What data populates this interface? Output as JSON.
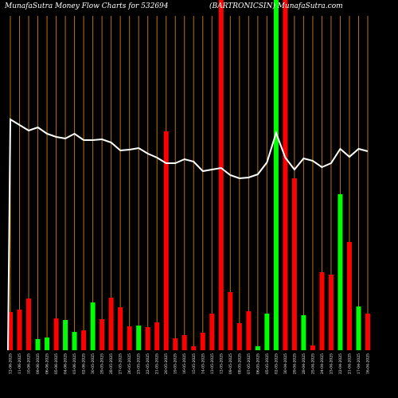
{
  "chart_data": {
    "type": "bar",
    "title": "MunafaSutra  Money Flow  Charts for 532694",
    "subtitle": "(BARTRONICSIN)  MunafaSutra.com",
    "colors": {
      "background": "#000000",
      "up": "#00ff00",
      "down": "#ff0000",
      "line": "#ffffff",
      "grid": "#b8720f"
    },
    "grid": true,
    "bars": [
      {
        "label": "12-06-2025",
        "color": "red",
        "value": 48
      },
      {
        "label": "11-06-2025",
        "color": "red",
        "value": 51
      },
      {
        "label": "10-06-2025",
        "color": "red",
        "value": 65
      },
      {
        "label": "09-06-2025",
        "color": "green",
        "value": 14
      },
      {
        "label": "06-06-2025",
        "color": "green",
        "value": 16
      },
      {
        "label": "05-06-2025",
        "color": "red",
        "value": 40
      },
      {
        "label": "04-06-2025",
        "color": "green",
        "value": 38
      },
      {
        "label": "03-06-2025",
        "color": "green",
        "value": 23
      },
      {
        "label": "02-06-2025",
        "color": "red",
        "value": 25
      },
      {
        "label": "30-05-2025",
        "color": "green",
        "value": 60
      },
      {
        "label": "29-05-2025",
        "color": "red",
        "value": 39
      },
      {
        "label": "28-05-2025",
        "color": "red",
        "value": 66
      },
      {
        "label": "27-05-2025",
        "color": "red",
        "value": 54
      },
      {
        "label": "26-05-2025",
        "color": "red",
        "value": 30
      },
      {
        "label": "23-05-2025",
        "color": "green",
        "value": 31
      },
      {
        "label": "22-05-2025",
        "color": "red",
        "value": 29
      },
      {
        "label": "21-05-2025",
        "color": "red",
        "value": 35
      },
      {
        "label": "20-05-2025",
        "color": "red",
        "value": 275
      },
      {
        "label": "19-05-2025",
        "color": "red",
        "value": 15
      },
      {
        "label": "16-05-2025",
        "color": "red",
        "value": 19
      },
      {
        "label": "15-05-2025",
        "color": "red",
        "value": 5
      },
      {
        "label": "14-05-2025",
        "color": "red",
        "value": 22
      },
      {
        "label": "13-05-2025",
        "color": "red",
        "value": 46
      },
      {
        "label": "12-05-2025",
        "color": "red",
        "value": 440
      },
      {
        "label": "09-05-2025",
        "color": "red",
        "value": 73
      },
      {
        "label": "08-05-2025",
        "color": "red",
        "value": 34
      },
      {
        "label": "07-05-2025",
        "color": "red",
        "value": 49
      },
      {
        "label": "06-05-2025",
        "color": "green",
        "value": 5
      },
      {
        "label": "05-05-2025",
        "color": "green",
        "value": 46
      },
      {
        "label": "02-05-2025",
        "color": "green",
        "value": 440
      },
      {
        "label": "30-04-2025",
        "color": "red",
        "value": 440
      },
      {
        "label": "29-04-2025",
        "color": "red",
        "value": 216
      },
      {
        "label": "28-04-2025",
        "color": "green",
        "value": 44
      },
      {
        "label": "25-04-2025",
        "color": "red",
        "value": 6
      },
      {
        "label": "24-04-2025",
        "color": "red",
        "value": 98
      },
      {
        "label": "23-04-2025",
        "color": "red",
        "value": 95
      },
      {
        "label": "22-04-2025",
        "color": "green",
        "value": 196
      },
      {
        "label": "21-04-2025",
        "color": "red",
        "value": 136
      },
      {
        "label": "17-04-2025",
        "color": "green",
        "value": 55
      },
      {
        "label": "16-04-2025",
        "color": "red",
        "value": 46
      }
    ],
    "line": [
      150,
      157,
      164,
      160,
      168,
      172,
      174,
      168,
      176,
      176,
      175,
      179,
      189,
      188,
      186,
      193,
      198,
      205,
      205,
      200,
      203,
      215,
      213,
      211,
      220,
      224,
      223,
      219,
      204,
      167,
      198,
      213,
      199,
      202,
      210,
      205,
      187,
      197,
      187,
      190
    ]
  }
}
